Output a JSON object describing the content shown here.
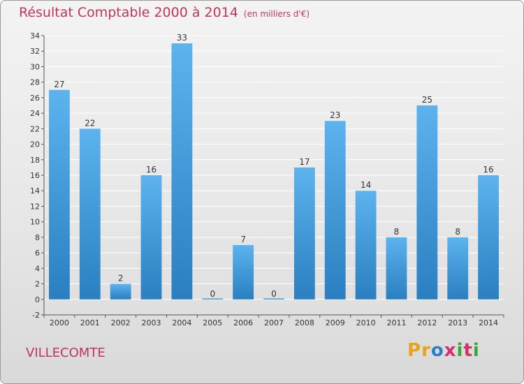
{
  "page": {
    "title": "Résultat Comptable 2000 à 2014",
    "subtitle": "(en milliers d'€)",
    "commune": "VILLECOMTE",
    "logo": {
      "letters": [
        "P",
        "r",
        "o",
        "x",
        "i",
        "t",
        "i"
      ],
      "colors": [
        "#e8a317",
        "#e8a317",
        "#2a7fc9",
        "#d6306a",
        "#3aa63a",
        "#d6306a",
        "#3aa63a"
      ]
    }
  },
  "chart_data": {
    "type": "bar",
    "title": "Résultat Comptable 2000 à 2014",
    "subtitle": "(en milliers d'€)",
    "xlabel": "",
    "ylabel": "",
    "categories": [
      "2000",
      "2001",
      "2002",
      "2003",
      "2004",
      "2005",
      "2006",
      "2007",
      "2008",
      "2009",
      "2010",
      "2011",
      "2012",
      "2013",
      "2014"
    ],
    "values": [
      27,
      22,
      2,
      16,
      33,
      0,
      7,
      0,
      17,
      23,
      14,
      8,
      25,
      8,
      16
    ],
    "ylim": [
      -2,
      34
    ],
    "yticks": [
      -2,
      0,
      2,
      4,
      6,
      8,
      10,
      12,
      14,
      16,
      18,
      20,
      22,
      24,
      26,
      28,
      30,
      32,
      34
    ],
    "grid": true,
    "bar_color": "#4aa3e6"
  }
}
